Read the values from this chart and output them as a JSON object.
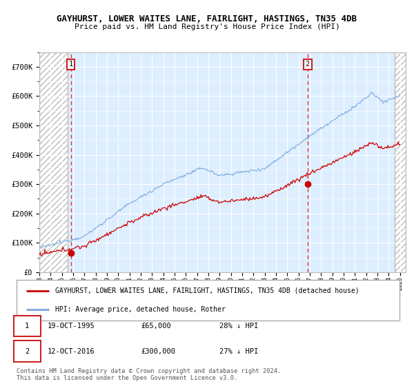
{
  "title": "GAYHURST, LOWER WAITES LANE, FAIRLIGHT, HASTINGS, TN35 4DB",
  "subtitle": "Price paid vs. HM Land Registry's House Price Index (HPI)",
  "ylim": [
    0,
    750000
  ],
  "xlim_start": 1993.0,
  "xlim_end": 2025.5,
  "hpi_color": "#7aaadd",
  "price_color": "#cc0000",
  "marker1_date": 1995.8,
  "marker1_price": 65000,
  "marker2_date": 2016.8,
  "marker2_price": 300000,
  "legend_label1": "GAYHURST, LOWER WAITES LANE, FAIRLIGHT, HASTINGS, TN35 4DB (detached house)",
  "legend_label2": "HPI: Average price, detached house, Rother",
  "note1_num": "1",
  "note1_date": "19-OCT-1995",
  "note1_price": "£65,000",
  "note1_hpi": "28% ↓ HPI",
  "note2_num": "2",
  "note2_date": "12-OCT-2016",
  "note2_price": "£300,000",
  "note2_hpi": "27% ↓ HPI",
  "footer": "Contains HM Land Registry data © Crown copyright and database right 2024.\nThis data is licensed under the Open Government Licence v3.0.",
  "hatch_color": "#bbbbbb",
  "bg_color": "#ddeeff",
  "hatch_region_end": 1995.5,
  "hatch_region_start2": 2024.5,
  "hpi_noise_std": 2500,
  "price_noise_std": 3500
}
